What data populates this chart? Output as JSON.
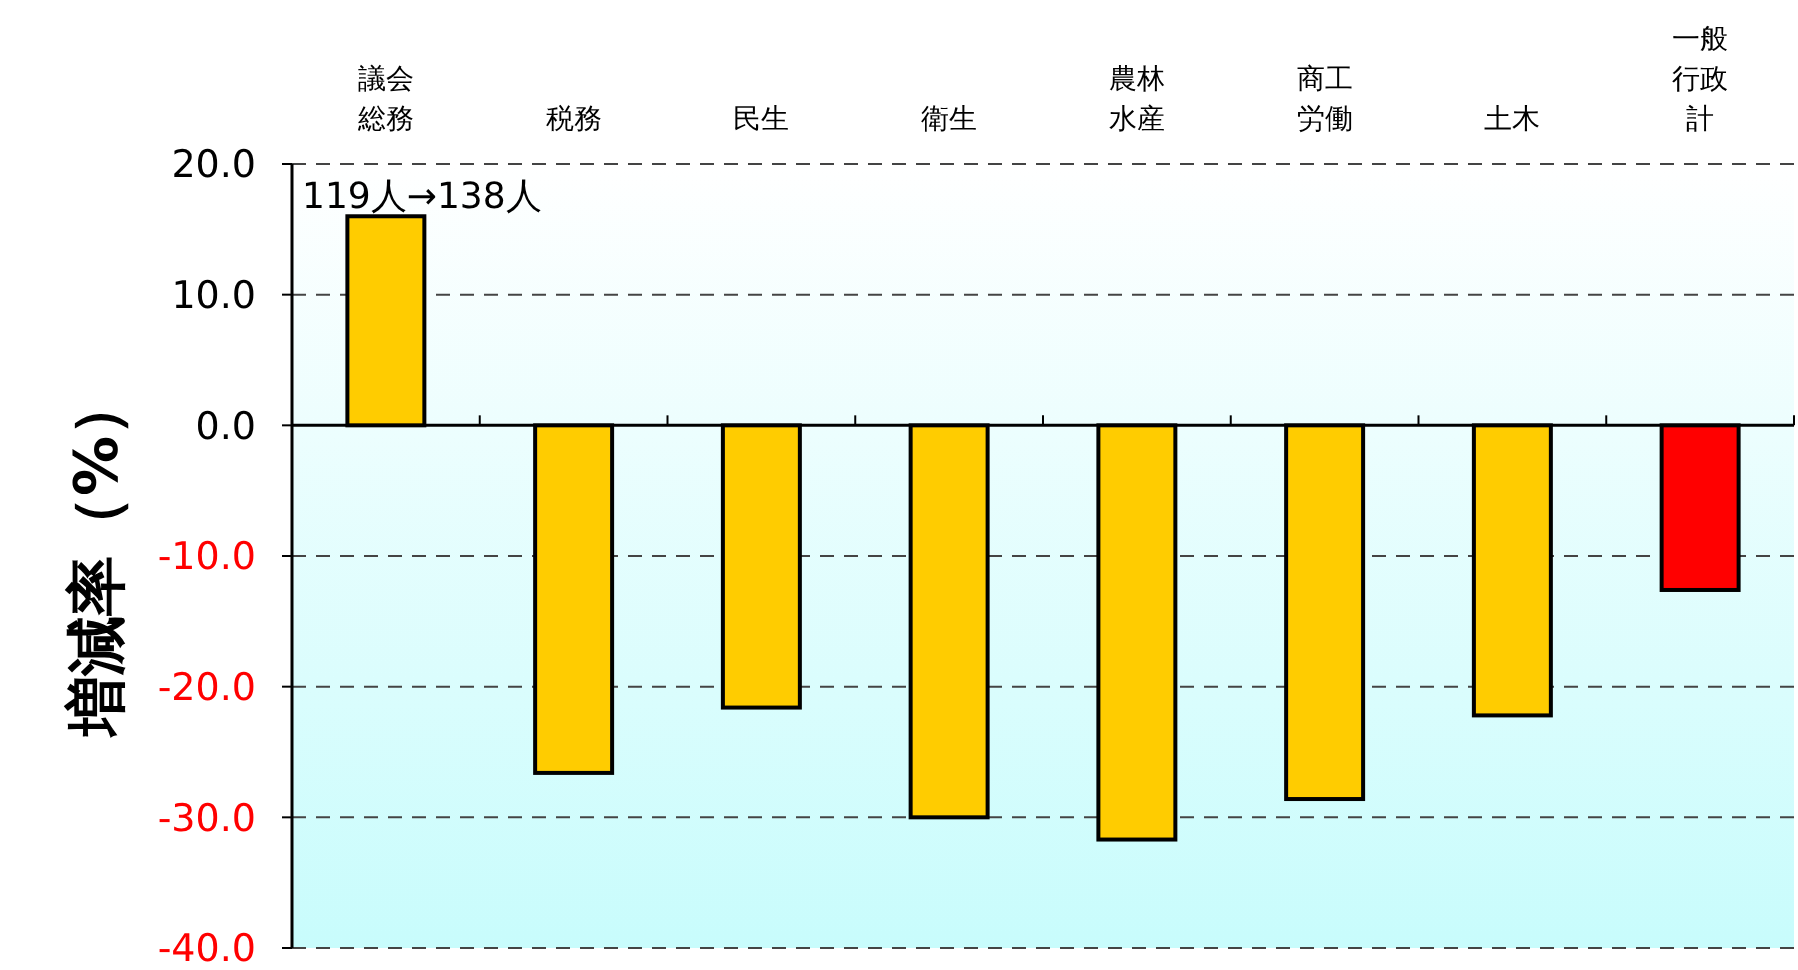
{
  "chart_data": {
    "type": "bar",
    "ylabel": "増減率（%）",
    "categories": [
      "議会総務",
      "税務",
      "民生",
      "衛生",
      "農林水産",
      "商工労働",
      "土木",
      "一般行政計"
    ],
    "values": [
      16.0,
      -26.6,
      -21.6,
      -30.0,
      -31.7,
      -28.6,
      -22.2,
      -12.6
    ],
    "colors": [
      "#ffcc00",
      "#ffcc00",
      "#ffcc00",
      "#ffcc00",
      "#ffcc00",
      "#ffcc00",
      "#ffcc00",
      "#ff0000"
    ],
    "ylim": [
      -40,
      20
    ],
    "yticks": [
      {
        "value": 20,
        "label": "20.0"
      },
      {
        "value": 10,
        "label": "10.0"
      },
      {
        "value": 0,
        "label": "0.0"
      },
      {
        "value": -10,
        "label": "-10.0"
      },
      {
        "value": -20,
        "label": "-20.0"
      },
      {
        "value": -30,
        "label": "-30.0"
      },
      {
        "value": -40,
        "label": "-40.0"
      }
    ],
    "grid": "y",
    "annotations": [
      {
        "text": "119人→138人",
        "x": "議会総務",
        "y": 16.0
      }
    ]
  }
}
